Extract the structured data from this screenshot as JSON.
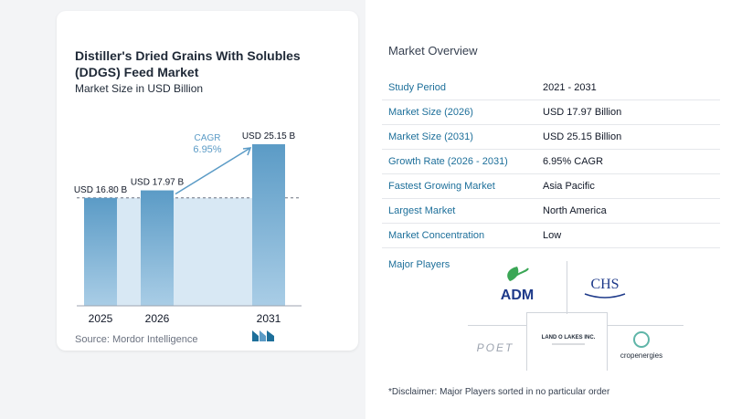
{
  "left": {
    "title": "Distiller's Dried Grains With Solubles (DDGS) Feed Market",
    "subtitle": "Market Size in USD Billion",
    "source": "Source:  Mordor Intelligence",
    "cagr_label": "CAGR",
    "cagr_value": "6.95%"
  },
  "chart_data": {
    "type": "bar",
    "categories": [
      "2025",
      "2026",
      "2031"
    ],
    "values": [
      16.8,
      17.97,
      25.15
    ],
    "data_labels": [
      "USD 16.80 B",
      "USD 17.97 B",
      "USD 25.15 B"
    ],
    "ylim": [
      0,
      27
    ],
    "colors": {
      "bar": "#5b9bc6",
      "bar_light": "#a9cde6",
      "band": "#d8e8f4",
      "arrow": "#5b9bc6"
    }
  },
  "overview": {
    "title": "Market Overview",
    "rows": [
      {
        "key": "Study Period",
        "value": "2021 - 2031"
      },
      {
        "key": "Market Size (2026)",
        "value": "USD 17.97 Billion"
      },
      {
        "key": "Market Size (2031)",
        "value": "USD 25.15 Billion"
      },
      {
        "key": "Growth Rate (2026 - 2031)",
        "value": "6.95% CAGR"
      },
      {
        "key": "Fastest Growing Market",
        "value": "Asia Pacific"
      },
      {
        "key": "Largest Market",
        "value": "North America"
      },
      {
        "key": "Market Concentration",
        "value": "Low"
      }
    ],
    "players_label": "Major Players",
    "players": {
      "adm": "ADM",
      "chs": "CHS",
      "poet": "POET",
      "landolakes": "LAND O LAKES INC.",
      "cropenergies": "cropenergies"
    },
    "disclaimer": "*Disclaimer: Major Players sorted in no particular order"
  }
}
